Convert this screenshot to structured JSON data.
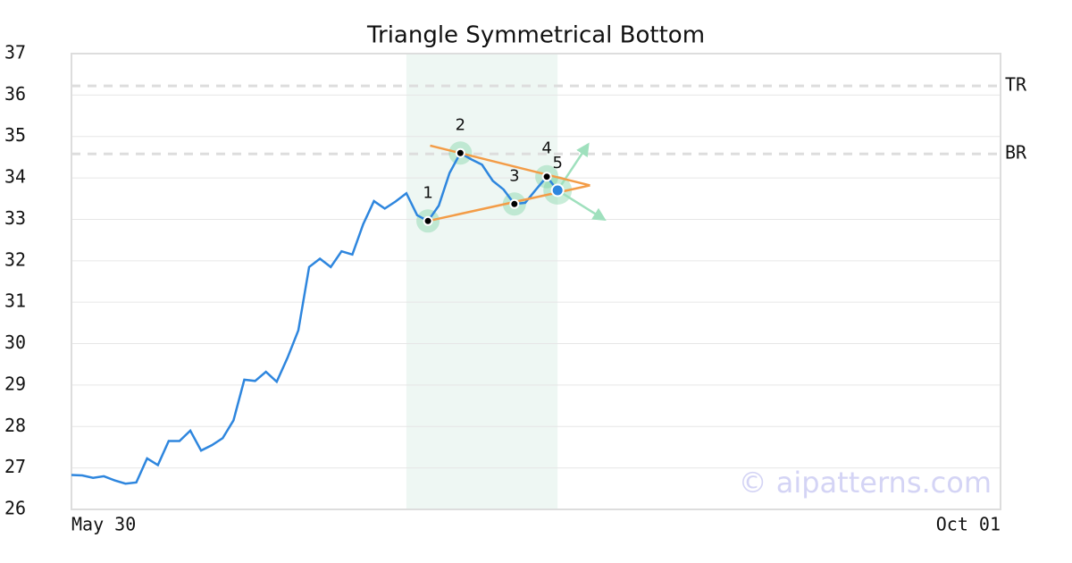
{
  "chart_data": {
    "type": "line",
    "title": "Triangle Symmetrical Bottom",
    "xlim": [
      0,
      86
    ],
    "xticks": [
      {
        "value": 0,
        "label": "May 30"
      },
      {
        "value": 86,
        "label": "Oct 01"
      }
    ],
    "ylim": [
      26,
      37
    ],
    "yticks": [
      26,
      27,
      28,
      29,
      30,
      31,
      32,
      33,
      34,
      35,
      36,
      37
    ],
    "grid": true,
    "series": [
      {
        "color": "#2e86de",
        "x": [
          0,
          1,
          2,
          3,
          4,
          5,
          6,
          7,
          8,
          9,
          10,
          11,
          12,
          13,
          14,
          15,
          16,
          17,
          18,
          19,
          20,
          21,
          22,
          23,
          24,
          25,
          26,
          27,
          28,
          29,
          30,
          31,
          32,
          33,
          34,
          35,
          36,
          37,
          38,
          39,
          40,
          41,
          42,
          43,
          44,
          45
        ],
        "values": [
          26.83,
          26.82,
          26.76,
          26.8,
          26.7,
          26.62,
          26.65,
          27.23,
          27.07,
          27.65,
          27.65,
          27.9,
          27.42,
          27.55,
          27.72,
          28.15,
          29.13,
          29.1,
          29.32,
          29.08,
          29.66,
          30.32,
          31.85,
          32.05,
          31.85,
          32.23,
          32.15,
          32.88,
          33.44,
          33.26,
          33.43,
          33.63,
          33.1,
          32.96,
          33.33,
          34.12,
          34.6,
          34.45,
          34.32,
          33.93,
          33.72,
          33.37,
          33.4,
          33.72,
          34.03,
          33.7
        ]
      }
    ],
    "highlight": {
      "x": [
        31,
        45
      ],
      "color": "#eef7f3"
    },
    "pattern_points": [
      {
        "label": "1",
        "x": 33,
        "y": 32.96
      },
      {
        "label": "2",
        "x": 36,
        "y": 34.6
      },
      {
        "label": "3",
        "x": 41,
        "y": 33.37
      },
      {
        "label": "4",
        "x": 44,
        "y": 34.03
      },
      {
        "label": "5",
        "x": 45,
        "y": 33.7
      }
    ],
    "trend_lines": [
      {
        "x": [
          33.2,
          48
        ],
        "y": [
          34.78,
          33.82
        ]
      },
      {
        "x": [
          33,
          48
        ],
        "y": [
          32.96,
          33.82
        ]
      }
    ],
    "trend_color": "#f39c47",
    "arrows": [
      {
        "x": [
          45,
          47.8
        ],
        "y": [
          33.7,
          34.8
        ]
      },
      {
        "x": [
          45,
          49.3
        ],
        "y": [
          33.7,
          33.0
        ]
      }
    ],
    "levels": [
      {
        "name": "TR",
        "value": 36.22
      },
      {
        "name": "BR",
        "value": 34.58
      }
    ],
    "watermark": "© aipatterns.com"
  }
}
